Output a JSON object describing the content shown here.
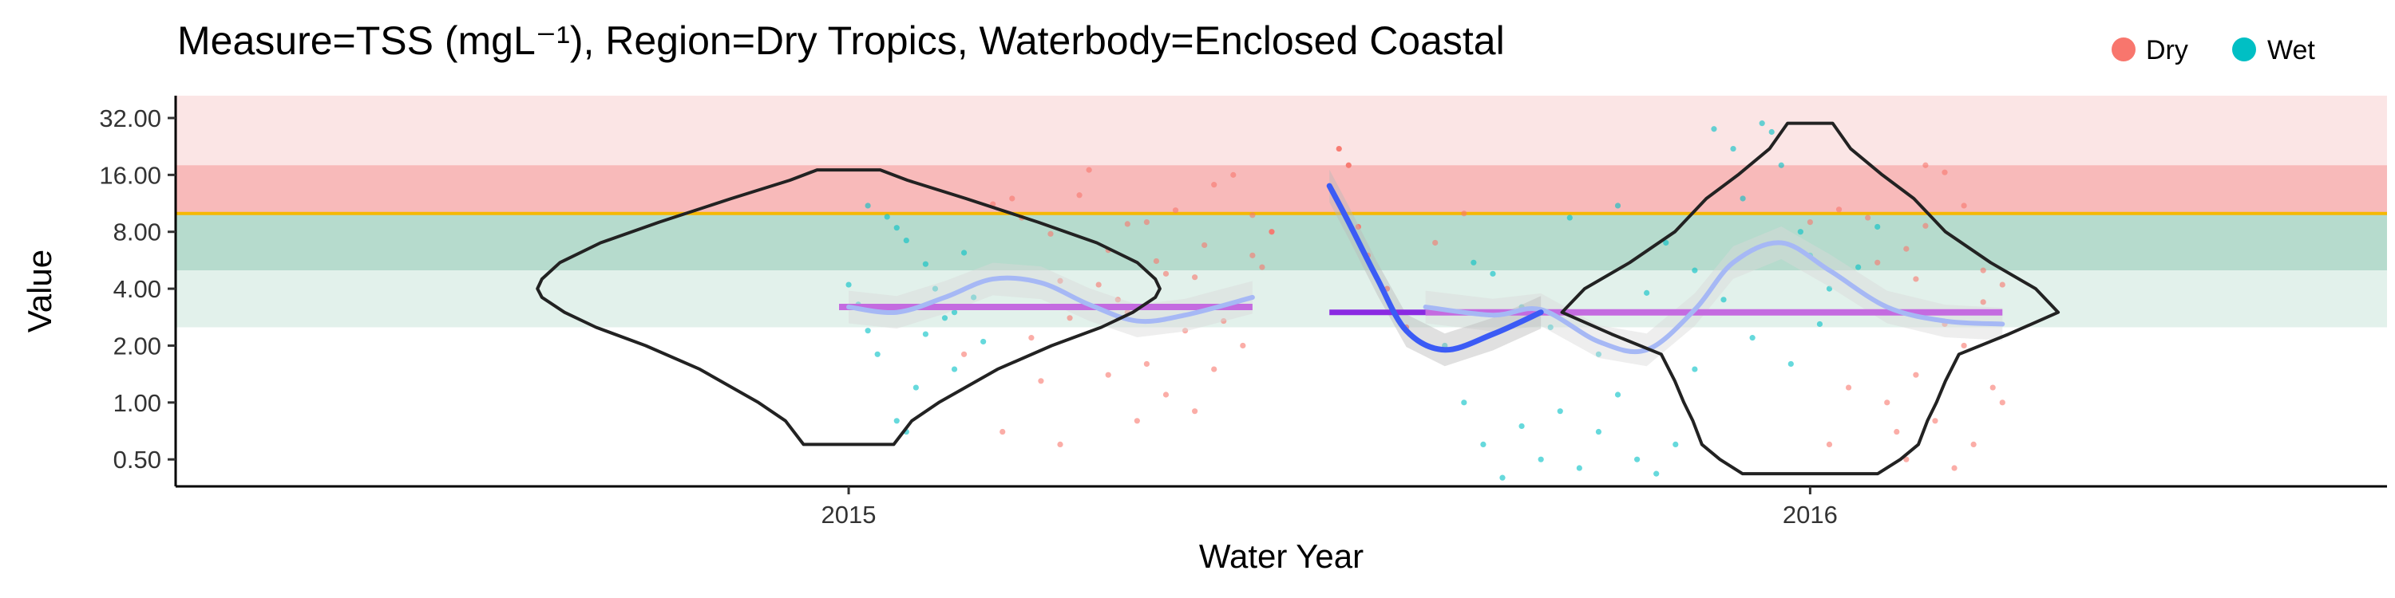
{
  "chart_data": {
    "type": "scatter",
    "title": "Measure=TSS (mgL⁻¹), Region=Dry Tropics, Waterbody=Enclosed Coastal",
    "xlabel": "Water Year",
    "ylabel": "Value",
    "x_categories": [
      "2015",
      "2016"
    ],
    "x_range": [
      2014.3,
      2016.6
    ],
    "y_scale": "log2",
    "y_ticks": [
      0.5,
      1,
      2,
      4,
      8,
      16,
      32
    ],
    "y_tick_labels": [
      "0.50",
      "1.00",
      "2.00",
      "4.00",
      "8.00",
      "16.00",
      "32.00"
    ],
    "ylim": [
      0.36,
      42
    ],
    "grid": false,
    "legend": {
      "placement": "top-right",
      "entries": [
        {
          "label": "Dry",
          "color": "#F8766D"
        },
        {
          "label": "Wet",
          "color": "#00BFC4"
        }
      ]
    },
    "guideline_value": 10,
    "guideline_color": "#F5B800",
    "bands": [
      {
        "y0": 18,
        "y1": 42,
        "color": "#F8CFCF",
        "opacity": 0.55
      },
      {
        "y0": 10,
        "y1": 18,
        "color": "#F5A3A3",
        "opacity": 0.75
      },
      {
        "y0": 5,
        "y1": 10,
        "color": "#9ECFBC",
        "opacity": 0.75
      },
      {
        "y0": 2.5,
        "y1": 5,
        "color": "#CFE8DD",
        "opacity": 0.6
      }
    ],
    "medians": [
      {
        "year": "2015",
        "x_start": 2014.99,
        "x_end": 2015.42,
        "value": 3.2,
        "color": "#C46BE0"
      },
      {
        "year": "2016",
        "x_start": 2015.6,
        "x_end": 2016.2,
        "value": 3.0,
        "color": "#C46BE0"
      }
    ],
    "violins": [
      {
        "year": "2015",
        "profile": [
          [
            0.6,
            0.1
          ],
          [
            0.8,
            0.14
          ],
          [
            1.0,
            0.2
          ],
          [
            1.5,
            0.33
          ],
          [
            2.0,
            0.45
          ],
          [
            2.5,
            0.56
          ],
          [
            3.0,
            0.63
          ],
          [
            3.6,
            0.68
          ],
          [
            4.0,
            0.69
          ],
          [
            4.5,
            0.68
          ],
          [
            5.5,
            0.64
          ],
          [
            7.0,
            0.55
          ],
          [
            9.0,
            0.42
          ],
          [
            12.0,
            0.26
          ],
          [
            15.0,
            0.13
          ],
          [
            17.0,
            0.07
          ]
        ]
      },
      {
        "year": "2016",
        "profile": [
          [
            0.42,
            0.15
          ],
          [
            0.5,
            0.2
          ],
          [
            0.6,
            0.24
          ],
          [
            0.8,
            0.26
          ],
          [
            1.0,
            0.28
          ],
          [
            1.3,
            0.3
          ],
          [
            1.8,
            0.33
          ],
          [
            2.3,
            0.44
          ],
          [
            3.0,
            0.55
          ],
          [
            4.0,
            0.5
          ],
          [
            5.5,
            0.4
          ],
          [
            8.0,
            0.3
          ],
          [
            12.0,
            0.23
          ],
          [
            16.0,
            0.16
          ],
          [
            22.0,
            0.09
          ],
          [
            30.0,
            0.05
          ]
        ]
      }
    ],
    "smooth_trends": [
      {
        "name": "",
        "color": "#A6B8F5",
        "ribbon": "#DADADA",
        "points": [
          [
            2015.0,
            3.2
          ],
          [
            2015.05,
            3.0
          ],
          [
            2015.1,
            3.6
          ],
          [
            2015.15,
            4.5
          ],
          [
            2015.2,
            4.3
          ],
          [
            2015.25,
            3.3
          ],
          [
            2015.3,
            2.7
          ],
          [
            2015.35,
            2.9
          ],
          [
            2015.42,
            3.6
          ]
        ]
      },
      {
        "name": "",
        "color": "#A6B8F5",
        "ribbon": "#DADADA",
        "points": [
          [
            2015.6,
            3.2
          ],
          [
            2015.67,
            2.9
          ],
          [
            2015.72,
            3.1
          ],
          [
            2015.78,
            2.1
          ],
          [
            2015.83,
            1.9
          ],
          [
            2015.88,
            3.1
          ],
          [
            2015.92,
            5.5
          ],
          [
            2015.97,
            7.0
          ],
          [
            2016.02,
            5.0
          ],
          [
            2016.08,
            3.2
          ],
          [
            2016.14,
            2.7
          ],
          [
            2016.2,
            2.6
          ]
        ]
      },
      {
        "name": "",
        "color": "#3B5BF5",
        "ribbon": "#BBBBBB",
        "points": [
          [
            2015.5,
            14.0
          ],
          [
            2015.52,
            9.0
          ],
          [
            2015.55,
            4.5
          ],
          [
            2015.58,
            2.4
          ],
          [
            2015.62,
            1.9
          ],
          [
            2015.67,
            2.3
          ],
          [
            2015.72,
            3.0
          ]
        ]
      }
    ],
    "short_median": {
      "x_start": 2015.5,
      "x_end": 2015.6,
      "value": 3.0,
      "color": "#8A2BE2"
    },
    "point_series": [
      {
        "name": "Dry",
        "color": "#F8766D",
        "points": [
          [
            2015.15,
            11.2
          ],
          [
            2015.18,
            9.5
          ],
          [
            2015.21,
            7.8
          ],
          [
            2015.24,
            12.5
          ],
          [
            2015.27,
            6.4
          ],
          [
            2015.29,
            8.8
          ],
          [
            2015.32,
            5.6
          ],
          [
            2015.34,
            10.4
          ],
          [
            2015.36,
            4.6
          ],
          [
            2015.38,
            14.2
          ],
          [
            2015.4,
            3.2
          ],
          [
            2015.42,
            6.0
          ],
          [
            2015.3,
            0.8
          ],
          [
            2015.22,
            0.6
          ],
          [
            2015.33,
            1.1
          ],
          [
            2015.38,
            1.5
          ],
          [
            2015.41,
            2.0
          ],
          [
            2015.25,
            17.0
          ],
          [
            2015.4,
            16.0
          ],
          [
            2015.2,
            1.3
          ],
          [
            2015.27,
            1.4
          ],
          [
            2015.31,
            1.6
          ],
          [
            2015.36,
            0.9
          ],
          [
            2015.16,
            0.7
          ],
          [
            2015.19,
            2.2
          ],
          [
            2015.23,
            2.8
          ],
          [
            2015.28,
            3.5
          ],
          [
            2015.35,
            2.4
          ],
          [
            2015.39,
            2.7
          ],
          [
            2015.43,
            5.2
          ],
          [
            2015.12,
            1.8
          ],
          [
            2015.26,
            4.2
          ],
          [
            2015.31,
            9.0
          ],
          [
            2015.44,
            8.0
          ],
          [
            2015.17,
            12.0
          ],
          [
            2015.51,
            22.0
          ],
          [
            2015.52,
            18.0
          ],
          [
            2015.53,
            8.5
          ],
          [
            2015.54,
            6.0
          ],
          [
            2015.56,
            4.0
          ],
          [
            2015.58,
            2.5
          ],
          [
            2015.61,
            7.0
          ],
          [
            2015.64,
            10.0
          ],
          [
            2016.12,
            18.0
          ],
          [
            2016.14,
            16.5
          ],
          [
            2016.16,
            11.0
          ],
          [
            2016.18,
            5.0
          ],
          [
            2016.2,
            1.0
          ],
          [
            2016.17,
            0.6
          ],
          [
            2016.15,
            0.45
          ],
          [
            2016.19,
            1.2
          ],
          [
            2016.13,
            0.8
          ],
          [
            2016.1,
            0.5
          ],
          [
            2016.11,
            1.4
          ],
          [
            2016.16,
            2.0
          ],
          [
            2016.18,
            3.4
          ],
          [
            2016.2,
            4.2
          ],
          [
            2016.1,
            6.5
          ],
          [
            2016.12,
            8.6
          ],
          [
            2016.09,
            0.7
          ],
          [
            2016.08,
            1.0
          ],
          [
            2016.14,
            2.6
          ],
          [
            2016.06,
            9.5
          ],
          [
            2016.03,
            10.5
          ],
          [
            2016.11,
            4.5
          ],
          [
            2015.22,
            4.4
          ],
          [
            2015.29,
            3.0
          ],
          [
            2015.33,
            4.8
          ],
          [
            2015.37,
            6.8
          ],
          [
            2015.42,
            9.8
          ],
          [
            2016.02,
            0.6
          ],
          [
            2016.04,
            1.2
          ],
          [
            2016.05,
            3.0
          ],
          [
            2016.07,
            5.5
          ],
          [
            2016.0,
            9.0
          ]
        ]
      },
      {
        "name": "Wet",
        "color": "#00BFC4",
        "points": [
          [
            2015.0,
            4.2
          ],
          [
            2015.01,
            3.3
          ],
          [
            2015.02,
            2.4
          ],
          [
            2015.03,
            1.8
          ],
          [
            2015.04,
            9.6
          ],
          [
            2015.05,
            8.4
          ],
          [
            2015.06,
            0.7
          ],
          [
            2015.07,
            1.2
          ],
          [
            2015.08,
            5.4
          ],
          [
            2015.09,
            4.0
          ],
          [
            2015.1,
            2.8
          ],
          [
            2015.11,
            1.5
          ],
          [
            2015.12,
            6.2
          ],
          [
            2015.13,
            3.6
          ],
          [
            2015.14,
            2.1
          ],
          [
            2015.02,
            11.0
          ],
          [
            2015.05,
            0.8
          ],
          [
            2015.08,
            2.3
          ],
          [
            2015.11,
            3.0
          ],
          [
            2015.06,
            7.2
          ],
          [
            2015.64,
            1.0
          ],
          [
            2015.66,
            0.6
          ],
          [
            2015.68,
            0.4
          ],
          [
            2015.7,
            0.75
          ],
          [
            2015.72,
            0.5
          ],
          [
            2015.74,
            0.9
          ],
          [
            2015.76,
            0.45
          ],
          [
            2015.78,
            0.7
          ],
          [
            2015.8,
            1.1
          ],
          [
            2015.82,
            0.5
          ],
          [
            2015.84,
            0.42
          ],
          [
            2015.86,
            0.6
          ],
          [
            2015.88,
            1.5
          ],
          [
            2015.9,
            28.0
          ],
          [
            2015.92,
            22.0
          ],
          [
            2015.95,
            30.0
          ],
          [
            2015.96,
            27.0
          ],
          [
            2015.97,
            18.0
          ],
          [
            2015.93,
            12.0
          ],
          [
            2015.99,
            8.0
          ],
          [
            2016.0,
            6.0
          ],
          [
            2016.02,
            4.0
          ],
          [
            2016.04,
            3.0
          ],
          [
            2015.75,
            9.5
          ],
          [
            2015.8,
            11.0
          ],
          [
            2015.85,
            7.0
          ],
          [
            2015.88,
            5.0
          ],
          [
            2015.91,
            3.5
          ],
          [
            2015.94,
            2.2
          ],
          [
            2015.98,
            1.6
          ],
          [
            2016.01,
            2.6
          ],
          [
            2016.05,
            5.2
          ],
          [
            2016.07,
            8.5
          ],
          [
            2015.7,
            3.2
          ],
          [
            2015.65,
            5.5
          ],
          [
            2015.73,
            2.5
          ],
          [
            2015.78,
            1.8
          ],
          [
            2015.83,
            3.8
          ],
          [
            2015.62,
            2.0
          ],
          [
            2015.67,
            4.8
          ]
        ]
      }
    ]
  }
}
